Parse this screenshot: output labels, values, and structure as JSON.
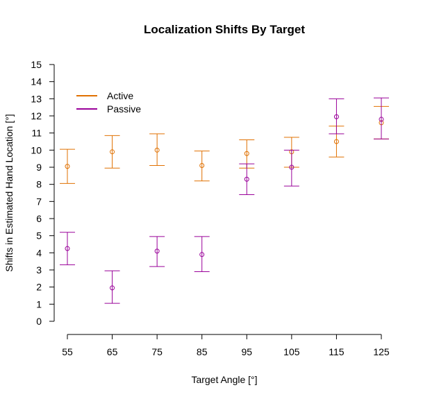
{
  "chart_data": {
    "type": "scatter",
    "title": "Localization Shifts By Target",
    "xlabel": "Target Angle [°]",
    "ylabel": "Shifts in Estimated Hand Location [°]",
    "x": [
      55,
      65,
      75,
      85,
      95,
      105,
      115,
      125
    ],
    "xticks": [
      55,
      65,
      75,
      85,
      95,
      105,
      115,
      125
    ],
    "xlim": [
      55,
      125
    ],
    "ylim": [
      0,
      15
    ],
    "yticks": [
      0,
      1,
      2,
      3,
      4,
      5,
      6,
      7,
      8,
      9,
      10,
      11,
      12,
      13,
      14,
      15
    ],
    "grid": false,
    "legend_position": "top-left",
    "series": [
      {
        "name": "Active",
        "color": "#E07000",
        "values": [
          9.05,
          9.9,
          10.0,
          9.1,
          9.8,
          9.9,
          10.5,
          11.6
        ],
        "lower": [
          8.05,
          8.95,
          9.1,
          8.2,
          8.95,
          9.0,
          9.6,
          10.65
        ],
        "upper": [
          10.05,
          10.85,
          10.95,
          9.95,
          10.6,
          10.75,
          11.4,
          12.55
        ]
      },
      {
        "name": "Passive",
        "color": "#990099",
        "values": [
          4.25,
          1.95,
          4.1,
          3.9,
          8.3,
          9.0,
          11.95,
          11.8
        ],
        "lower": [
          3.3,
          1.05,
          3.2,
          2.9,
          7.4,
          7.9,
          10.95,
          10.65
        ],
        "upper": [
          5.2,
          2.95,
          4.95,
          4.95,
          9.2,
          10.0,
          13.0,
          13.05
        ]
      }
    ]
  }
}
